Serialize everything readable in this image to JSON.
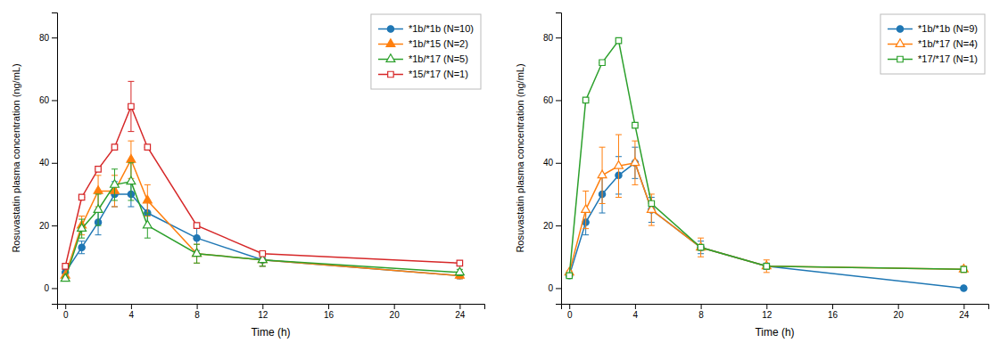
{
  "chart_data": [
    {
      "type": "line",
      "xlabel": "Time (h)",
      "ylabel": "Rosuvastatin plasma concentration (ng/mL)",
      "x": [
        0,
        1,
        2,
        3,
        4,
        5,
        8,
        12,
        24
      ],
      "series": [
        {
          "name": "*1b/*1b (N=10)",
          "marker": "circle",
          "values": [
            5,
            13,
            21,
            30,
            30,
            24,
            16,
            9,
            4
          ],
          "errors": [
            1,
            2,
            4,
            4,
            4,
            4,
            4,
            2,
            1
          ]
        },
        {
          "name": "*1b/*15 (N=2)",
          "marker": "triangle",
          "values": [
            4,
            20,
            31,
            31,
            41,
            28,
            11,
            9,
            4
          ],
          "errors": [
            0.5,
            3,
            5,
            5,
            6,
            5,
            3,
            2,
            1
          ]
        },
        {
          "name": "*1b/*17 (N=5)",
          "marker": "triangle-open",
          "values": [
            3,
            19,
            25,
            33,
            34,
            20,
            11,
            9,
            5
          ],
          "errors": [
            0.5,
            3,
            5,
            5,
            6,
            4,
            3,
            2,
            1
          ]
        },
        {
          "name": "*15/*17 (N=1)",
          "marker": "square-open",
          "values": [
            7,
            29,
            38,
            45,
            58,
            45,
            20,
            11,
            8
          ],
          "errors": [
            0,
            0,
            0,
            0,
            8,
            0,
            0,
            0,
            0
          ]
        }
      ],
      "xlim": [
        -0.5,
        25.5
      ],
      "xticks": [
        0,
        4,
        8,
        12,
        16,
        20,
        24
      ],
      "ylim": [
        -5,
        88
      ],
      "yticks": [
        0,
        20,
        40,
        60,
        80
      ],
      "grid": false,
      "legend": "top-right"
    },
    {
      "type": "line",
      "xlabel": "Time (h)",
      "ylabel": "Rosuvastatin plasma concentration (ng/mL)",
      "x": [
        0,
        1,
        2,
        3,
        4,
        5,
        8,
        12,
        24
      ],
      "series": [
        {
          "name": "*1b/*1b (N=9)",
          "marker": "circle",
          "values": [
            4,
            21,
            30,
            36,
            40,
            25,
            13,
            7,
            0
          ],
          "errors": [
            0.5,
            4,
            6,
            6,
            5,
            4,
            2,
            1,
            0
          ]
        },
        {
          "name": "*1b/*17 (N=4)",
          "marker": "triangle-open",
          "values": [
            5,
            25,
            36,
            39,
            40,
            25,
            13,
            7,
            6
          ],
          "errors": [
            0.5,
            6,
            9,
            10,
            7,
            5,
            3,
            2,
            1
          ]
        },
        {
          "name": "*17/*17 (N=1)",
          "marker": "square-open",
          "values": [
            4,
            60,
            72,
            79,
            52,
            27,
            13,
            7,
            6
          ],
          "errors": [
            0,
            0,
            0,
            0,
            0,
            0,
            0,
            0,
            0
          ]
        }
      ],
      "xlim": [
        -0.5,
        25.5
      ],
      "xticks": [
        0,
        4,
        8,
        12,
        16,
        20,
        24
      ],
      "ylim": [
        -5,
        88
      ],
      "yticks": [
        0,
        20,
        40,
        60,
        80
      ],
      "grid": false,
      "legend": "top-right"
    }
  ]
}
